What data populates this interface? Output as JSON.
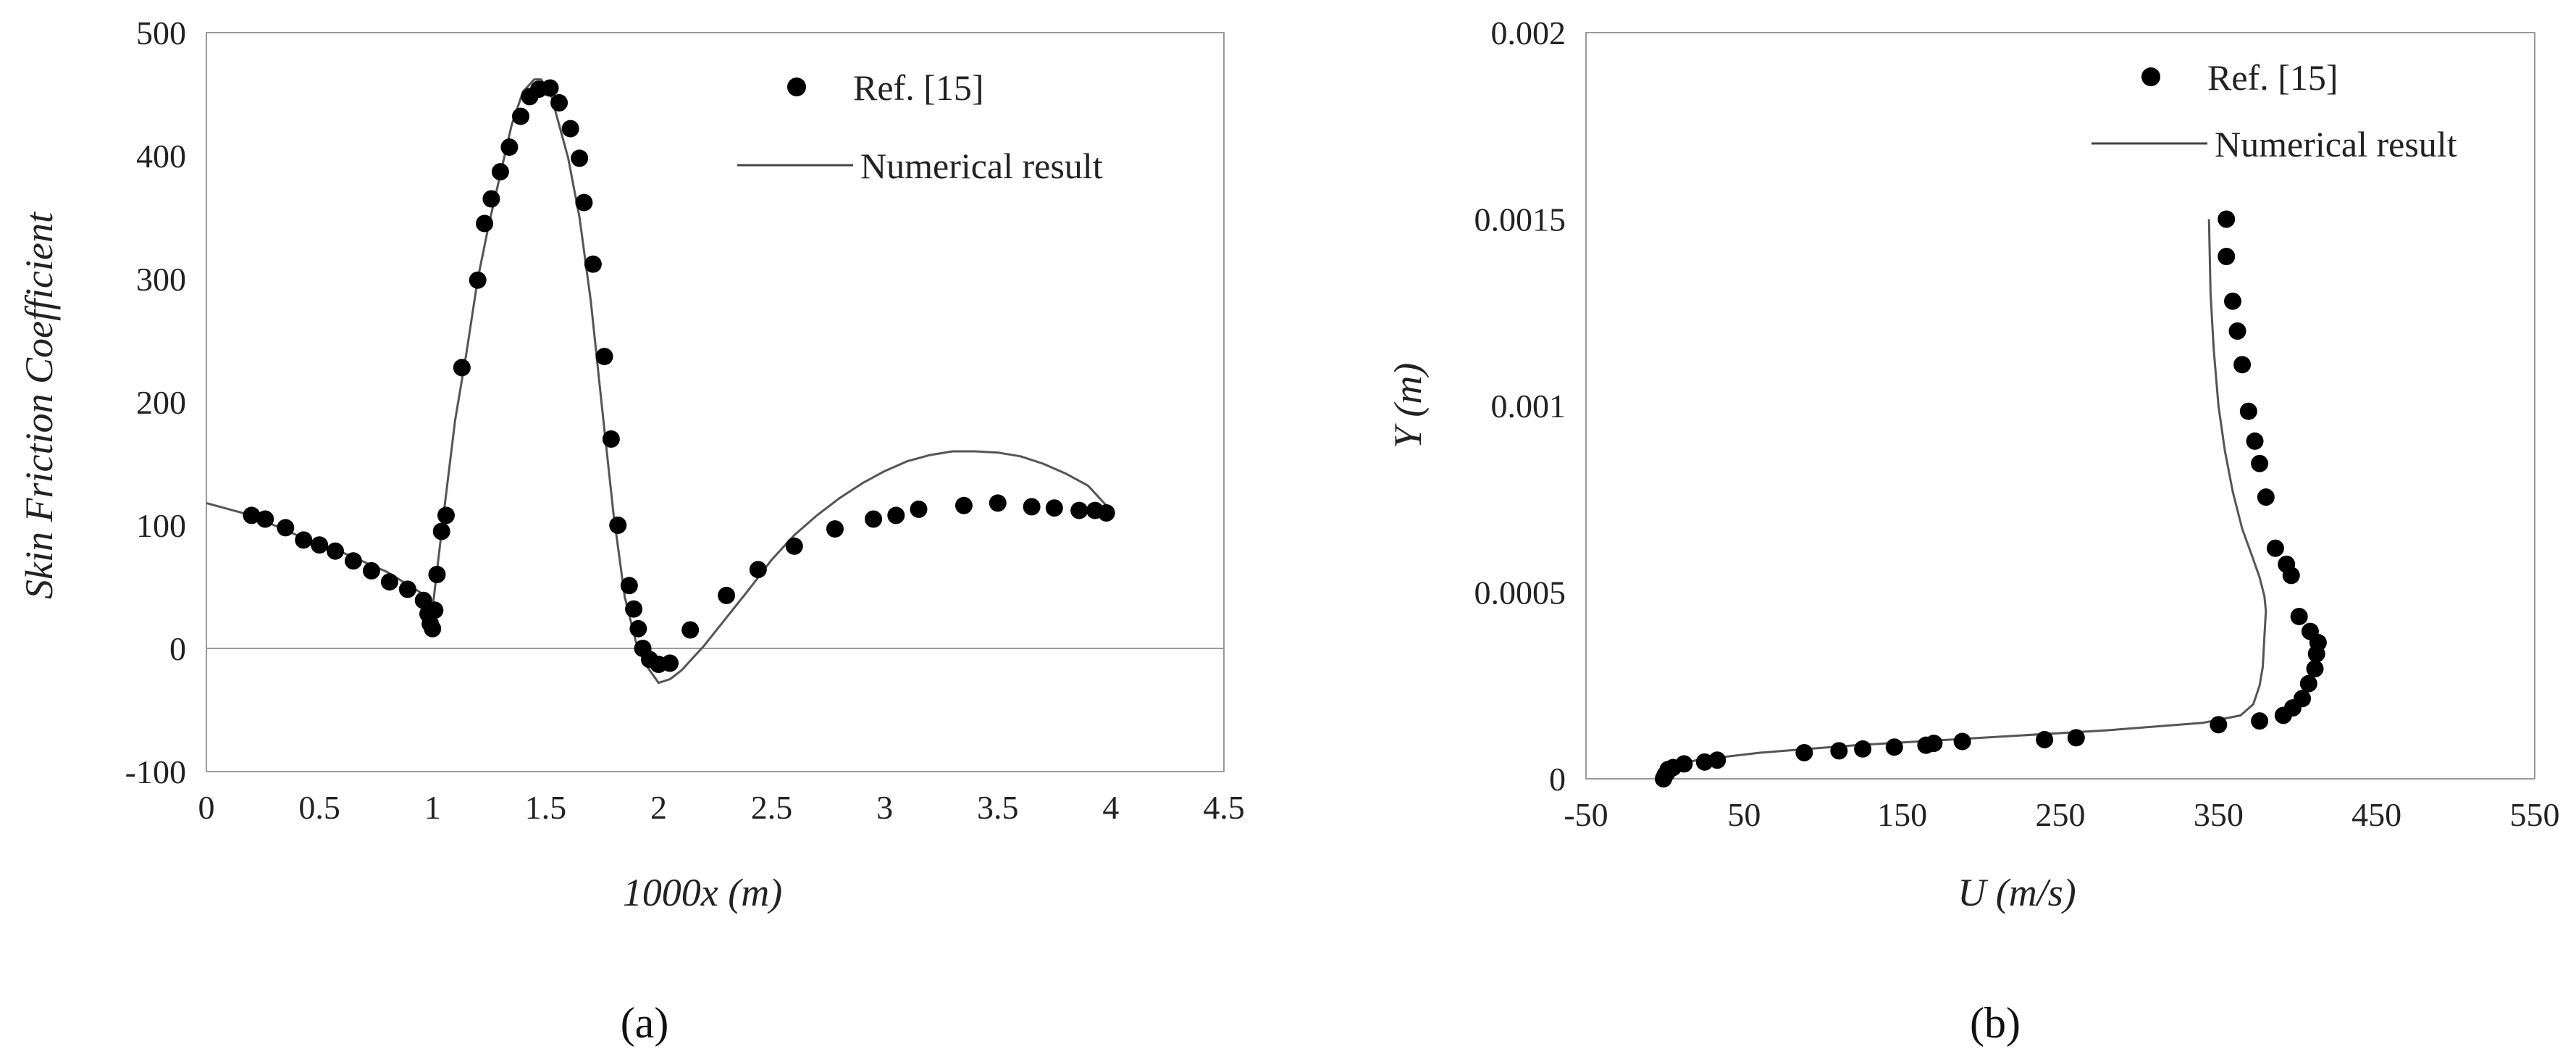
{
  "chart_data": [
    {
      "type": "scatter",
      "caption": "(a)",
      "xlabel": "1000x (m)",
      "ylabel": "Skin Friction Coefficient",
      "xlim": [
        0,
        4.5
      ],
      "ylim": [
        -100,
        500
      ],
      "xticks": [
        0,
        0.5,
        1,
        1.5,
        2,
        2.5,
        3,
        3.5,
        4,
        4.5
      ],
      "yticks": [
        -100,
        0,
        100,
        200,
        300,
        400,
        500
      ],
      "xtick_labels": [
        "0",
        "0.5",
        "1",
        "1.5",
        "2",
        "2.5",
        "3",
        "3.5",
        "4",
        "4.5"
      ],
      "ytick_labels": [
        "-100",
        "0",
        "100",
        "200",
        "300",
        "400",
        "500"
      ],
      "legend": [
        "Ref. [15]",
        "Numerical result"
      ],
      "grid": false,
      "series": [
        {
          "name": "Ref. [15]",
          "style": "markers",
          "x": [
            0.2,
            0.26,
            0.35,
            0.43,
            0.5,
            0.57,
            0.65,
            0.73,
            0.81,
            0.89,
            0.96,
            0.98,
            0.99,
            1.0,
            1.01,
            1.02,
            1.04,
            1.06,
            1.13,
            1.2,
            1.23,
            1.26,
            1.3,
            1.34,
            1.39,
            1.43,
            1.47,
            1.52,
            1.56,
            1.61,
            1.65,
            1.67,
            1.71,
            1.76,
            1.79,
            1.82,
            1.87,
            1.89,
            1.91,
            1.93,
            1.96,
            2.0,
            2.05,
            2.14,
            2.3,
            2.44,
            2.6,
            2.78,
            2.95,
            3.05,
            3.15,
            3.35,
            3.5,
            3.65,
            3.75,
            3.86,
            3.93,
            3.98
          ],
          "y": [
            108,
            105,
            98,
            88,
            84,
            79,
            71,
            63,
            54,
            48,
            39,
            28,
            20,
            16,
            31,
            60,
            95,
            108,
            228,
            299,
            345,
            365,
            387,
            407,
            432,
            448,
            454,
            455,
            443,
            422,
            398,
            362,
            312,
            237,
            170,
            100,
            51,
            32,
            16,
            0,
            -9,
            -13,
            -12,
            15,
            43,
            64,
            83,
            97,
            105,
            108,
            113,
            116,
            118,
            115,
            114,
            112,
            112,
            110
          ]
        },
        {
          "name": "Numerical result",
          "style": "line",
          "x": [
            0,
            0.2,
            0.4,
            0.6,
            0.8,
            0.95,
            1.0,
            1.05,
            1.1,
            1.15,
            1.2,
            1.25,
            1.3,
            1.35,
            1.4,
            1.45,
            1.48,
            1.52,
            1.55,
            1.6,
            1.65,
            1.7,
            1.75,
            1.8,
            1.85,
            1.9,
            1.95,
            2.0,
            2.05,
            2.1,
            2.2,
            2.3,
            2.4,
            2.5,
            2.6,
            2.7,
            2.8,
            2.9,
            3.0,
            3.1,
            3.2,
            3.3,
            3.4,
            3.5,
            3.6,
            3.7,
            3.8,
            3.9,
            4.0
          ],
          "y": [
            118,
            108,
            92,
            78,
            62,
            45,
            32,
            110,
            185,
            240,
            300,
            345,
            385,
            425,
            452,
            462,
            462,
            452,
            432,
            398,
            350,
            282,
            195,
            110,
            42,
            5,
            -15,
            -28,
            -25,
            -18,
            2,
            25,
            48,
            72,
            92,
            108,
            122,
            134,
            144,
            152,
            157,
            160,
            160,
            159,
            156,
            150,
            142,
            132,
            112
          ]
        }
      ]
    },
    {
      "type": "scatter",
      "caption": "(b)",
      "xlabel": "U (m/s)",
      "ylabel": "Y (m)",
      "xlim": [
        -50,
        550
      ],
      "ylim": [
        0,
        0.002
      ],
      "xticks": [
        -50,
        50,
        150,
        250,
        350,
        450,
        550
      ],
      "yticks": [
        0,
        0.0005,
        0.001,
        0.0015,
        0.002
      ],
      "xtick_labels": [
        "-50",
        "50",
        "150",
        "250",
        "350",
        "450",
        "550"
      ],
      "ytick_labels": [
        "0",
        "0.0005",
        "0.001",
        "0.0015",
        "0.002"
      ],
      "legend": [
        "Ref. [15]",
        "Numerical result"
      ],
      "grid": false,
      "series": [
        {
          "name": "Ref. [15]",
          "style": "markers",
          "x": [
            355,
            355,
            359,
            362,
            365,
            369,
            373,
            376,
            380,
            386,
            393,
            396,
            401,
            408,
            413,
            412,
            411,
            407,
            403,
            397,
            391,
            376,
            350,
            260,
            240,
            188,
            170,
            165,
            145,
            125,
            110,
            88,
            33,
            25,
            12,
            5,
            2,
            1,
            0,
            -1
          ],
          "y": [
            0.0015,
            0.0014,
            0.00128,
            0.0012,
            0.00111,
            0.000985,
            0.000905,
            0.000845,
            0.000755,
            0.000618,
            0.000575,
            0.000545,
            0.000435,
            0.000395,
            0.000365,
            0.000335,
            0.000295,
            0.000255,
            0.000215,
            0.00019,
            0.00017,
            0.000155,
            0.000145,
            0.00011,
            0.000105,
            0.0001,
            9.5e-05,
            9e-05,
            8.5e-05,
            8e-05,
            7.5e-05,
            7e-05,
            5e-05,
            4.5e-05,
            4e-05,
            3e-05,
            2.5e-05,
            1.5e-05,
            1e-05,
            0
          ]
        },
        {
          "name": "Numerical result",
          "style": "line",
          "x": [
            344,
            345,
            347,
            350,
            354,
            359,
            365,
            371,
            376,
            379,
            380,
            379,
            378,
            376,
            372,
            364,
            340,
            280,
            200,
            120,
            60,
            20,
            0
          ],
          "y": [
            0.0015,
            0.0013,
            0.00115,
            0.001,
            0.00088,
            0.00077,
            0.00067,
            0.0006,
            0.00054,
            0.00049,
            0.00045,
            0.00038,
            0.0003,
            0.00025,
            0.0002,
            0.00017,
            0.00015,
            0.00013,
            0.00011,
            9e-05,
            7e-05,
            5e-05,
            3e-05
          ]
        }
      ]
    }
  ]
}
